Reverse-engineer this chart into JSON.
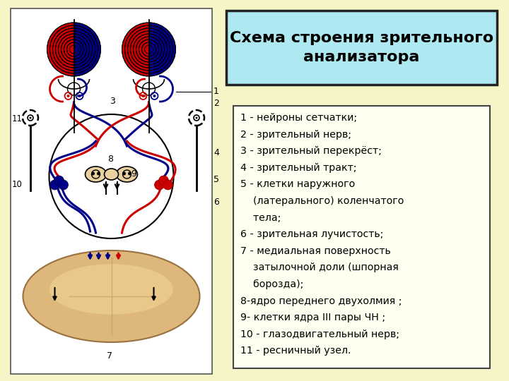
{
  "bg_color": "#f5f5c8",
  "title": "Схема строения зрительного\nанализатора",
  "title_bg": "#aee8f0",
  "title_fontsize": 16,
  "legend_lines": [
    "1 - нейроны сетчатки;",
    "2 - зрительный нерв;",
    "3 - зрительный перекрёст;",
    "4 - зрительный тракт;",
    "5 - клетки наружного",
    "    (латерального) коленчатого",
    "    тела;",
    "6 - зрительная лучистость;",
    "7 - медиальная поверхность",
    "    затылочной доли (шпорная",
    "    борозда);",
    "8-ядро переднего двухолмия ;",
    "9- клетки ядра III пары ЧН ;",
    "10 - глазодвигательный нерв;",
    "11 - ресничный узел."
  ],
  "legend_fontsize": 10.2,
  "legend_bg": "#fffff0",
  "legend_border": "#444444",
  "title_border": "#222222",
  "diagram_bg": "#ffffff",
  "diagram_border": "#555555"
}
